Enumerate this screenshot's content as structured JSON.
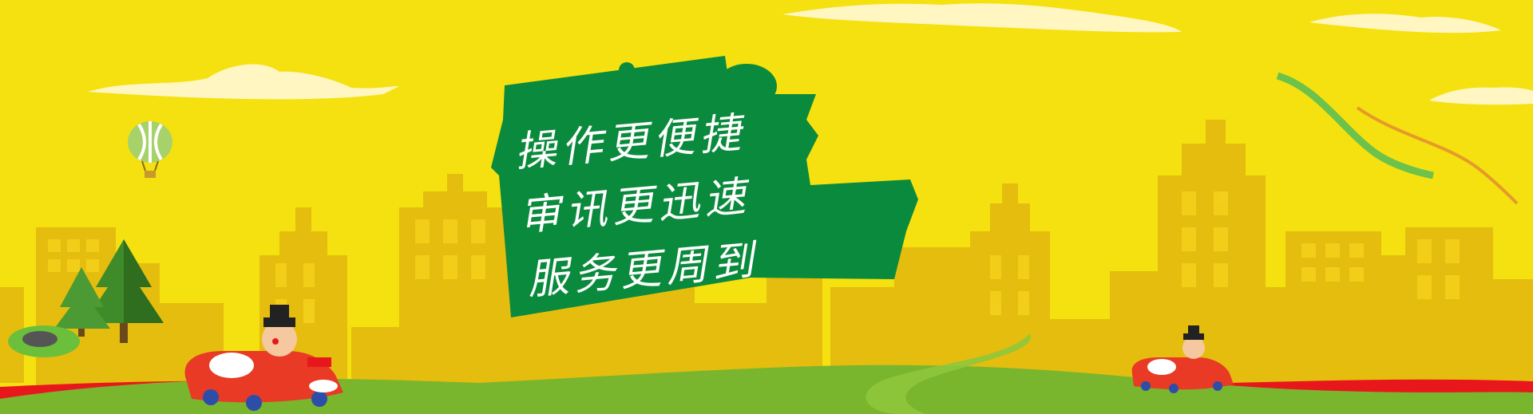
{
  "banner": {
    "slogan": {
      "line1": "操作更便捷",
      "line2": "审讯更迅速",
      "line3": "服务更周到"
    },
    "colors": {
      "background": "#f5e10f",
      "buildings": "#e5bd0e",
      "sign": "#0a8a3c",
      "grass": "#7ab52e",
      "road": "#e8171c",
      "cloud": "#fff6c2"
    },
    "icons": [
      "hot-air-balloon-icon",
      "pine-tree-icon",
      "cartoon-car-icon",
      "cloud-icon",
      "ribbon-icon"
    ]
  }
}
